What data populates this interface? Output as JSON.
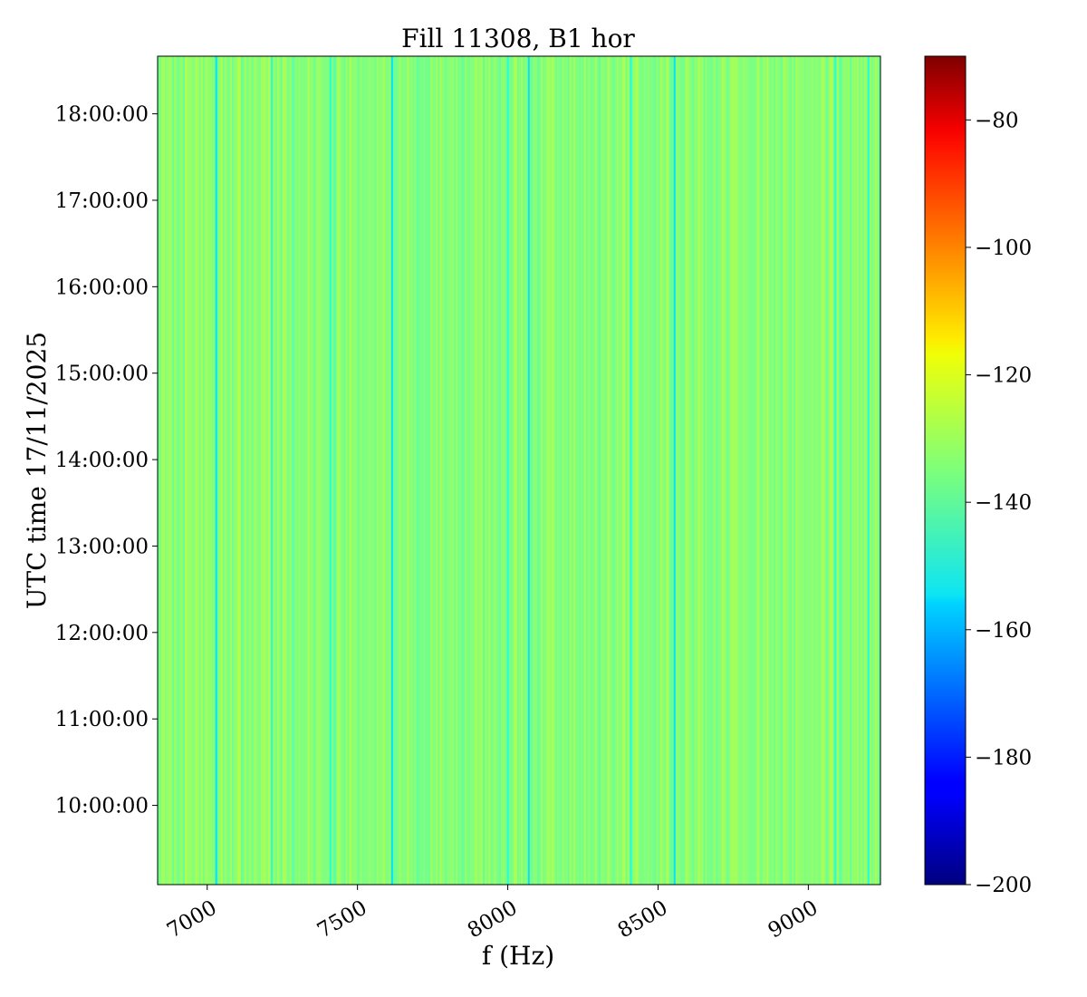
{
  "chart_data": {
    "type": "heatmap",
    "title": "Fill 11308, B1 hor",
    "xlabel": "f (Hz)",
    "ylabel": "UTC time 17/11/2025",
    "xlim": [
      6835,
      9240
    ],
    "x_ticks": [
      7000,
      7500,
      8000,
      8500,
      9000
    ],
    "x_tick_labels": [
      "7000",
      "7500",
      "8000",
      "8500",
      "9000"
    ],
    "ylim": [
      "09:05:00",
      "18:40:00"
    ],
    "y_ticks": [
      "10:00:00",
      "11:00:00",
      "12:00:00",
      "13:00:00",
      "14:00:00",
      "15:00:00",
      "16:00:00",
      "17:00:00",
      "18:00:00"
    ],
    "y_tick_labels": [
      "10:00:00",
      "11:00:00",
      "12:00:00",
      "13:00:00",
      "14:00:00",
      "15:00:00",
      "16:00:00",
      "17:00:00",
      "18:00:00"
    ],
    "colormap": "jet",
    "colorbar": {
      "vmin": -200,
      "vmax": -70,
      "ticks": [
        -200,
        -180,
        -160,
        -140,
        -120,
        -100,
        -80
      ],
      "tick_labels": [
        "−200",
        "−180",
        "−160",
        "−140",
        "−120",
        "−100",
        "−80"
      ]
    },
    "typical_level": -137,
    "level_range": [
      -140,
      -128
    ],
    "dips": [
      {
        "f": 7030,
        "level": -155
      },
      {
        "f": 7615,
        "level": -155
      },
      {
        "f": 8070,
        "level": -155
      },
      {
        "f": 8555,
        "level": -155
      },
      {
        "f": 8410,
        "level": -148
      },
      {
        "f": 7410,
        "level": -147
      },
      {
        "f": 7215,
        "level": -147
      },
      {
        "f": 9090,
        "level": -146
      },
      {
        "f": 9200,
        "level": -148
      },
      {
        "f": 8000,
        "level": -147
      }
    ],
    "pattern": "vertical stripes, constant over time"
  }
}
